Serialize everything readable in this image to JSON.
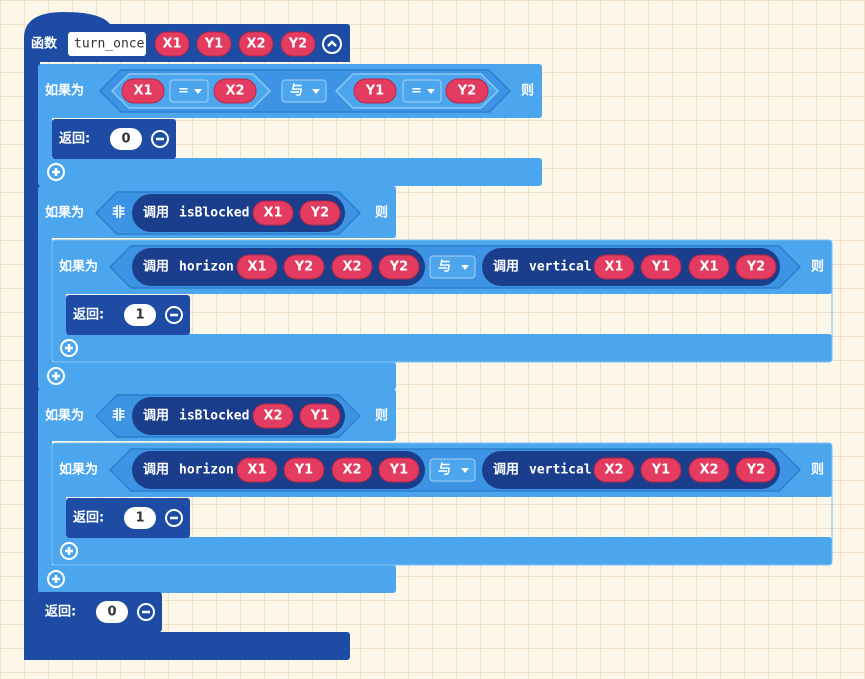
{
  "function": {
    "keyword": "函数",
    "name": "turn_once",
    "params": [
      "X1",
      "Y1",
      "X2",
      "Y2"
    ]
  },
  "body": [
    {
      "keyword": "如果为",
      "condition": {
        "left": {
          "left": "X1",
          "op": "=",
          "right": "X2"
        },
        "op": "与",
        "right": {
          "left": "Y1",
          "op": "=",
          "right": "Y2"
        }
      },
      "then": "则",
      "statements": [
        {
          "keyword": "返回:",
          "value": 0
        }
      ]
    },
    {
      "keyword": "如果为",
      "condition": {
        "not": "非",
        "call": "调用",
        "name": "isBlocked",
        "args": [
          "X1",
          "Y2"
        ]
      },
      "then": "则",
      "statements": [
        {
          "keyword": "如果为",
          "condition": {
            "left": {
              "call": "调用",
              "name": "horizon",
              "args": [
                "X1",
                "Y2",
                "X2",
                "Y2"
              ]
            },
            "op": "与",
            "right": {
              "call": "调用",
              "name": "vertical",
              "args": [
                "X1",
                "Y1",
                "X1",
                "Y2"
              ]
            }
          },
          "then": "则",
          "statements": [
            {
              "keyword": "返回:",
              "value": 1
            }
          ]
        }
      ]
    },
    {
      "keyword": "如果为",
      "condition": {
        "not": "非",
        "call": "调用",
        "name": "isBlocked",
        "args": [
          "X2",
          "Y1"
        ]
      },
      "then": "则",
      "statements": [
        {
          "keyword": "如果为",
          "condition": {
            "left": {
              "call": "调用",
              "name": "horizon",
              "args": [
                "X1",
                "Y1",
                "X2",
                "Y1"
              ]
            },
            "op": "与",
            "right": {
              "call": "调用",
              "name": "vertical",
              "args": [
                "X2",
                "Y1",
                "X2",
                "Y2"
              ]
            }
          },
          "then": "则",
          "statements": [
            {
              "keyword": "返回:",
              "value": 1
            }
          ]
        }
      ]
    },
    {
      "keyword": "返回:",
      "value": 0
    }
  ]
}
